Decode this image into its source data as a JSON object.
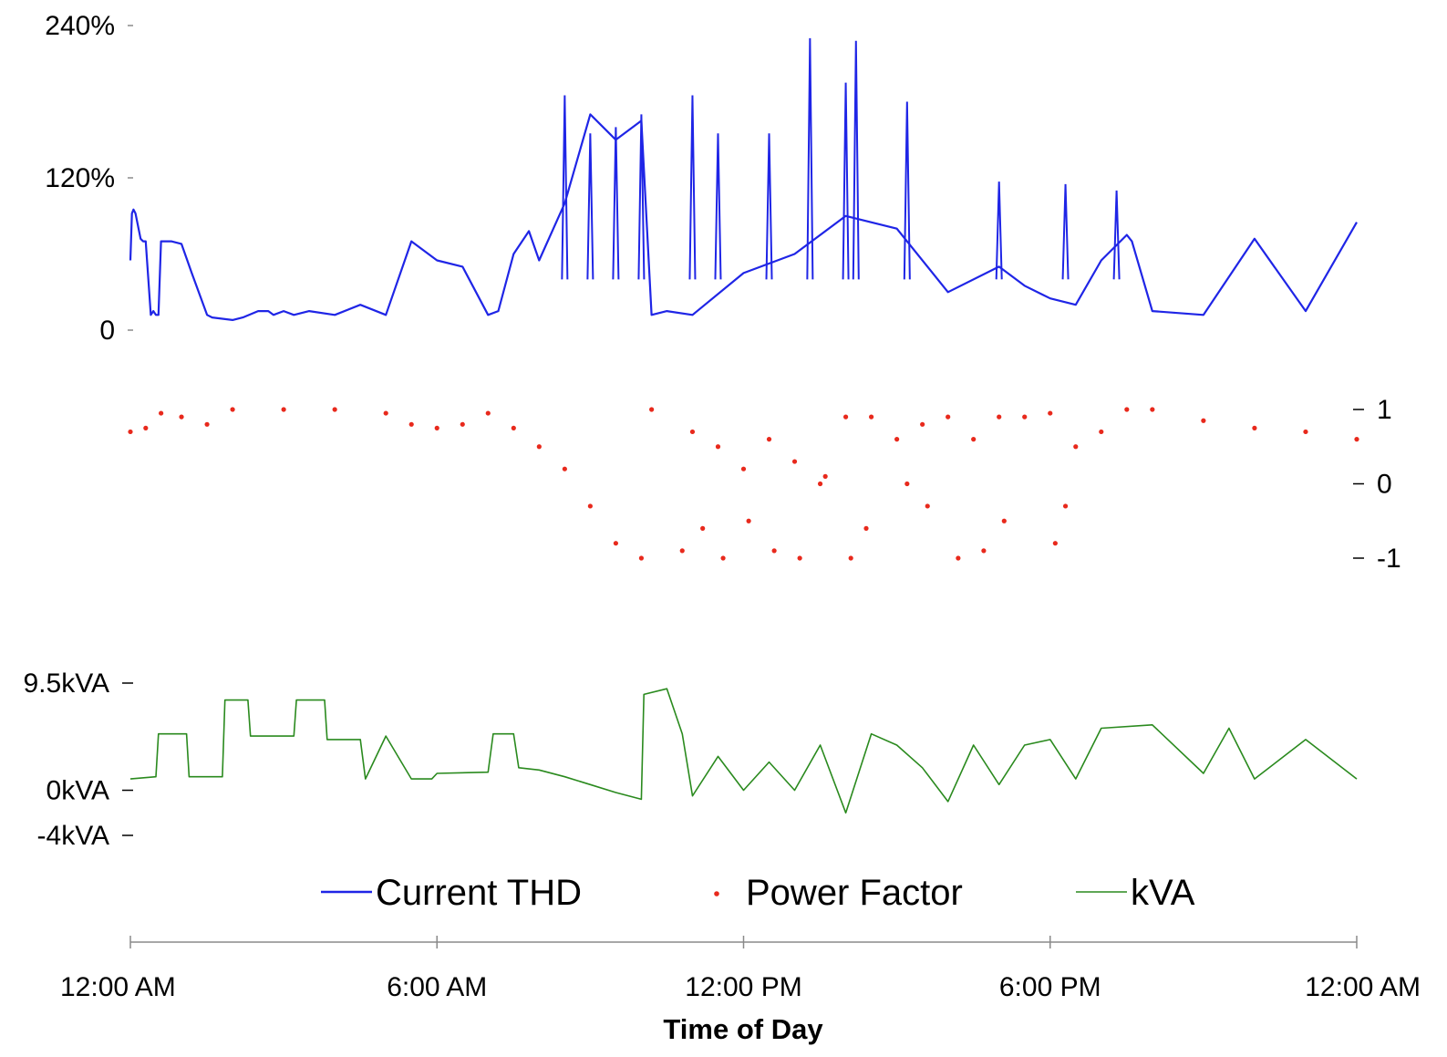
{
  "chart_data": {
    "type": "line",
    "xlabel": "Time of Day",
    "x_ticks": [
      "12:00 AM",
      "6:00 AM",
      "12:00 PM",
      "6:00 PM",
      "12:00 AM"
    ],
    "x_range_hours": [
      0,
      24
    ],
    "legend": {
      "position": "bottom",
      "entries": [
        "Current THD",
        "Power Factor",
        "kVA"
      ]
    },
    "grid": false,
    "panels": [
      {
        "name": "Current THD",
        "type": "line",
        "color": "#1f25e6",
        "axis_side": "left",
        "ylim": [
          0,
          240
        ],
        "y_ticks": [
          0,
          120,
          240
        ],
        "y_tick_labels": [
          "0",
          "120%",
          "240%"
        ],
        "x": [
          0.0,
          0.03,
          0.06,
          0.1,
          0.2,
          0.25,
          0.3,
          0.4,
          0.45,
          0.5,
          0.55,
          0.6,
          0.8,
          1.0,
          1.2,
          1.5,
          1.6,
          2.0,
          2.2,
          2.5,
          2.6,
          2.7,
          2.8,
          3.0,
          3.2,
          3.5,
          4.0,
          4.5,
          5.0,
          5.5,
          6.0,
          6.5,
          7.0,
          7.2,
          7.5,
          7.8,
          8.0,
          8.5,
          9.0,
          9.5,
          10.0,
          10.2,
          10.5,
          11.0,
          12.0,
          13.0,
          14.0,
          15.0,
          16.0,
          17.0,
          17.5,
          18.0,
          18.5,
          19.0,
          19.5,
          19.6,
          20.0,
          21.0,
          22.0,
          23.0,
          24.0
        ],
        "y": [
          55,
          92,
          95,
          92,
          72,
          70,
          70,
          12,
          15,
          12,
          12,
          70,
          70,
          68,
          45,
          12,
          10,
          8,
          10,
          15,
          15,
          15,
          12,
          15,
          12,
          15,
          12,
          20,
          12,
          70,
          55,
          50,
          12,
          15,
          60,
          78,
          55,
          100,
          170,
          150,
          165,
          12,
          15,
          12,
          45,
          60,
          90,
          80,
          30,
          50,
          35,
          25,
          20,
          55,
          75,
          70,
          15,
          12,
          72,
          15,
          85
        ],
        "peaks": [
          {
            "x": 8.5,
            "y": 185
          },
          {
            "x": 9.0,
            "y": 155
          },
          {
            "x": 9.5,
            "y": 160
          },
          {
            "x": 10.0,
            "y": 170
          },
          {
            "x": 11.0,
            "y": 185
          },
          {
            "x": 11.5,
            "y": 155
          },
          {
            "x": 12.5,
            "y": 155
          },
          {
            "x": 13.3,
            "y": 230
          },
          {
            "x": 14.0,
            "y": 195
          },
          {
            "x": 14.2,
            "y": 228
          },
          {
            "x": 15.2,
            "y": 180
          },
          {
            "x": 17.0,
            "y": 117
          },
          {
            "x": 18.3,
            "y": 115
          },
          {
            "x": 19.3,
            "y": 110
          }
        ]
      },
      {
        "name": "Power Factor",
        "type": "scatter",
        "color": "#e8291c",
        "axis_side": "right",
        "ylim": [
          -1,
          1
        ],
        "y_ticks": [
          -1,
          0,
          1
        ],
        "y_tick_labels": [
          "-1",
          "0",
          "1"
        ],
        "x": [
          0.0,
          0.3,
          0.6,
          1.0,
          1.5,
          2.0,
          3.0,
          4.0,
          5.0,
          5.5,
          6.0,
          6.5,
          7.0,
          7.5,
          8.0,
          8.5,
          9.0,
          9.5,
          10.0,
          10.2,
          11.0,
          11.5,
          12.0,
          12.5,
          13.0,
          13.5,
          14.0,
          14.5,
          15.0,
          15.5,
          16.0,
          16.5,
          17.0,
          17.5,
          18.0,
          18.5,
          19.0,
          19.5,
          20.0,
          21.0,
          22.0,
          23.0,
          24.0
        ],
        "y": [
          0.7,
          0.75,
          0.95,
          0.9,
          0.8,
          1.0,
          1.0,
          1.0,
          0.95,
          0.8,
          0.75,
          0.8,
          0.95,
          0.75,
          0.5,
          0.2,
          -0.3,
          -0.8,
          -1.0,
          1.0,
          0.7,
          0.5,
          0.2,
          0.6,
          0.3,
          0.0,
          0.9,
          0.9,
          0.6,
          0.8,
          0.9,
          0.6,
          0.9,
          0.9,
          0.95,
          0.5,
          0.7,
          1.0,
          1.0,
          0.85,
          0.75,
          0.7,
          0.6
        ],
        "scattered_points": [
          {
            "x": 10.8,
            "y": -0.9
          },
          {
            "x": 11.2,
            "y": -0.6
          },
          {
            "x": 11.6,
            "y": -1.0
          },
          {
            "x": 12.1,
            "y": -0.5
          },
          {
            "x": 12.6,
            "y": -0.9
          },
          {
            "x": 13.1,
            "y": -1.0
          },
          {
            "x": 13.6,
            "y": 0.1
          },
          {
            "x": 14.1,
            "y": -1.0
          },
          {
            "x": 14.4,
            "y": -0.6
          },
          {
            "x": 15.2,
            "y": 0.0
          },
          {
            "x": 15.6,
            "y": -0.3
          },
          {
            "x": 16.2,
            "y": -1.0
          },
          {
            "x": 16.7,
            "y": -0.9
          },
          {
            "x": 17.1,
            "y": -0.5
          },
          {
            "x": 18.1,
            "y": -0.8
          },
          {
            "x": 18.3,
            "y": -0.3
          }
        ]
      },
      {
        "name": "kVA",
        "type": "line",
        "color": "#2a8a1e",
        "axis_side": "left",
        "ylim": [
          -4,
          9.5
        ],
        "y_ticks": [
          -4,
          0,
          9.5
        ],
        "y_tick_labels": [
          "-4kVA",
          "0kVA",
          "9.5kVA"
        ],
        "x": [
          0.0,
          0.5,
          0.55,
          1.1,
          1.15,
          1.8,
          1.85,
          2.3,
          2.35,
          3.2,
          3.25,
          3.8,
          3.85,
          4.5,
          4.6,
          5.0,
          5.5,
          5.9,
          6.0,
          7.0,
          7.1,
          7.5,
          7.6,
          8.0,
          8.5,
          9.0,
          9.5,
          10.0,
          10.05,
          10.5,
          10.8,
          11.0,
          11.5,
          12.0,
          12.5,
          13.0,
          13.5,
          14.0,
          14.5,
          15.0,
          15.5,
          16.0,
          16.5,
          17.0,
          17.5,
          18.0,
          18.5,
          19.0,
          20.0,
          21.0,
          21.5,
          22.0,
          23.0,
          24.0
        ],
        "y": [
          1.0,
          1.2,
          5.0,
          5.0,
          1.2,
          1.2,
          8.0,
          8.0,
          4.8,
          4.8,
          8.0,
          8.0,
          4.5,
          4.5,
          1.0,
          4.8,
          1.0,
          1.0,
          1.5,
          1.6,
          5.0,
          5.0,
          2.0,
          1.8,
          1.2,
          0.5,
          -0.2,
          -0.8,
          8.5,
          9.0,
          5.0,
          -0.5,
          3.0,
          0.0,
          2.5,
          0.0,
          4.0,
          -2.0,
          5.0,
          4.0,
          2.0,
          -1.0,
          4.0,
          0.5,
          4.0,
          4.5,
          1.0,
          5.5,
          5.8,
          1.5,
          5.5,
          1.0,
          4.5,
          1.0
        ]
      }
    ]
  },
  "legend": {
    "current_thd": "Current THD",
    "power_factor": "Power Factor",
    "kva": "kVA"
  },
  "x_axis": {
    "title": "Time of Day",
    "ticks": [
      "12:00 AM",
      "6:00 AM",
      "12:00 PM",
      "6:00 PM",
      "12:00 AM"
    ]
  }
}
